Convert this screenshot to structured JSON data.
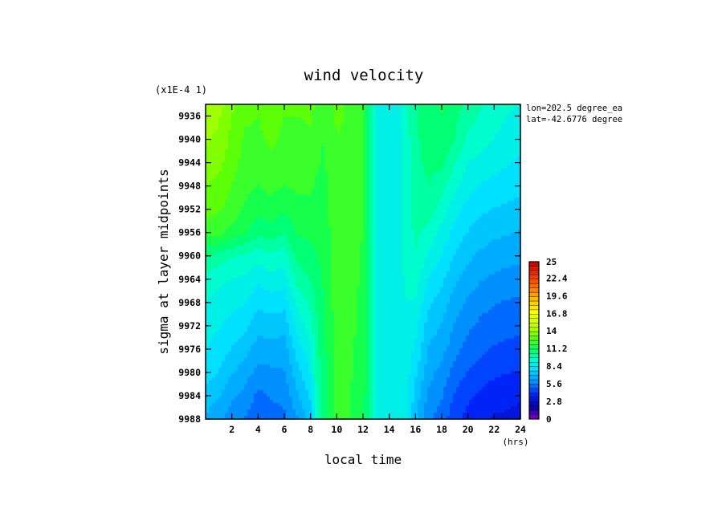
{
  "chart_data": {
    "type": "heatmap",
    "title": "wind velocity",
    "xlabel": "local time",
    "xunit": "(hrs)",
    "ylabel": "sigma at layer midpoints",
    "yscale_label": "(x1E-4 1)",
    "info_lines": [
      "lon=202.5 degree_ea",
      "lat=-42.6776 degree"
    ],
    "xlim": [
      0,
      24
    ],
    "ylim": [
      9988,
      9934
    ],
    "x_ticks": [
      2,
      4,
      6,
      8,
      10,
      12,
      14,
      16,
      18,
      20,
      22,
      24
    ],
    "y_ticks": [
      9936,
      9940,
      9944,
      9948,
      9952,
      9956,
      9960,
      9964,
      9968,
      9972,
      9976,
      9980,
      9984,
      9988
    ],
    "colorbar_ticks": [
      "25",
      "22.4",
      "19.6",
      "16.8",
      "14",
      "11.2",
      "8.4",
      "5.6",
      "2.8",
      "0"
    ],
    "colorbar_range": [
      0,
      25
    ],
    "colorbar_levels": 36,
    "grid": false,
    "x": [
      0,
      1,
      2,
      3,
      4,
      5,
      6,
      7,
      8,
      8.5,
      9,
      10,
      11,
      12,
      13,
      14,
      15,
      16,
      17,
      18,
      19,
      20,
      21,
      22,
      23,
      24
    ],
    "y": [
      9934,
      9936,
      9940,
      9944,
      9948,
      9952,
      9956,
      9960,
      9964,
      9968,
      9972,
      9976,
      9980,
      9984,
      9988
    ],
    "values": [
      [
        14.6,
        14.2,
        13.4,
        12.6,
        12.6,
        12.8,
        12.6,
        12.6,
        12.8,
        12.4,
        12.0,
        12.6,
        12.4,
        12.0,
        9.0,
        8.4,
        9.0,
        10.4,
        10.8,
        11.2,
        10.8,
        10.2,
        9.8,
        9.5,
        9.2,
        9.0
      ],
      [
        14.4,
        14.0,
        13.2,
        12.6,
        12.5,
        12.7,
        12.5,
        12.5,
        12.6,
        12.2,
        11.9,
        12.6,
        12.4,
        12.0,
        9.0,
        8.4,
        9.0,
        10.4,
        10.8,
        11.1,
        10.6,
        10.0,
        9.6,
        9.3,
        9.0,
        8.8
      ],
      [
        14.0,
        13.7,
        13.0,
        12.4,
        12.4,
        12.6,
        12.4,
        12.3,
        12.4,
        12.1,
        11.8,
        12.5,
        12.4,
        12.0,
        9.0,
        8.4,
        9.0,
        10.3,
        10.7,
        11.0,
        10.4,
        9.6,
        9.3,
        9.0,
        8.8,
        8.6
      ],
      [
        13.6,
        13.4,
        12.8,
        12.2,
        12.2,
        12.4,
        12.2,
        12.1,
        12.2,
        11.9,
        11.7,
        12.5,
        12.3,
        11.9,
        9.0,
        8.4,
        9.0,
        10.2,
        10.6,
        10.6,
        9.8,
        9.0,
        8.8,
        8.6,
        8.4,
        8.2
      ],
      [
        13.2,
        13.0,
        12.5,
        12.0,
        11.8,
        12.0,
        11.8,
        11.9,
        11.9,
        11.7,
        11.6,
        12.4,
        12.3,
        11.9,
        9.0,
        8.4,
        9.0,
        10.1,
        10.4,
        10.0,
        9.2,
        8.6,
        8.3,
        8.1,
        8.0,
        7.8
      ],
      [
        12.8,
        12.6,
        12.2,
        11.7,
        11.3,
        11.5,
        11.2,
        11.6,
        11.6,
        11.5,
        11.5,
        12.4,
        12.2,
        11.8,
        9.0,
        8.4,
        9.0,
        10.0,
        10.1,
        9.4,
        8.6,
        8.1,
        7.8,
        7.6,
        7.5,
        7.4
      ],
      [
        12.2,
        12.0,
        11.6,
        11.2,
        10.6,
        10.8,
        10.5,
        11.2,
        11.3,
        11.3,
        11.4,
        12.3,
        12.2,
        11.8,
        9.0,
        8.4,
        9.0,
        9.9,
        9.5,
        8.8,
        8.1,
        7.6,
        7.3,
        7.1,
        7.0,
        6.9
      ],
      [
        10.4,
        10.2,
        9.8,
        9.6,
        9.3,
        9.6,
        9.4,
        10.6,
        10.9,
        11.1,
        11.3,
        12.3,
        12.1,
        11.7,
        9.0,
        8.4,
        9.0,
        9.7,
        8.9,
        8.3,
        7.6,
        7.1,
        6.8,
        6.6,
        6.5,
        6.4
      ],
      [
        9.4,
        9.2,
        9.0,
        8.9,
        8.5,
        8.8,
        8.6,
        10.0,
        10.5,
        10.9,
        11.2,
        12.2,
        12.1,
        11.7,
        9.0,
        8.4,
        9.0,
        9.4,
        8.3,
        7.8,
        7.1,
        6.6,
        6.3,
        6.1,
        6.0,
        5.9
      ],
      [
        9.0,
        8.8,
        8.5,
        8.4,
        7.8,
        8.0,
        7.9,
        9.2,
        9.9,
        10.6,
        11.1,
        12.2,
        12.0,
        11.6,
        9.0,
        8.4,
        9.0,
        9.0,
        7.8,
        7.3,
        6.6,
        6.1,
        5.8,
        5.6,
        5.5,
        5.4
      ],
      [
        8.6,
        8.4,
        8.1,
        7.9,
        7.2,
        7.3,
        7.2,
        8.6,
        9.4,
        10.4,
        11.0,
        12.1,
        12.0,
        11.6,
        9.0,
        8.4,
        9.0,
        8.6,
        7.3,
        6.9,
        6.2,
        5.7,
        5.4,
        5.2,
        5.1,
        5.0
      ],
      [
        8.4,
        8.0,
        7.6,
        7.2,
        6.6,
        6.7,
        6.6,
        8.0,
        8.9,
        10.2,
        10.9,
        12.1,
        11.9,
        11.5,
        9.0,
        8.4,
        9.0,
        8.2,
        6.9,
        6.5,
        5.8,
        5.3,
        5.0,
        4.8,
        4.7,
        4.6
      ],
      [
        8.0,
        7.6,
        7.0,
        6.6,
        6.0,
        6.1,
        6.2,
        7.4,
        8.4,
        10.0,
        10.8,
        12.0,
        11.9,
        11.5,
        9.0,
        8.4,
        9.0,
        7.8,
        6.5,
        6.0,
        5.3,
        4.8,
        4.5,
        4.3,
        4.2,
        4.1
      ],
      [
        7.4,
        7.0,
        6.4,
        6.0,
        5.4,
        5.6,
        5.8,
        6.8,
        7.8,
        9.8,
        10.7,
        12.0,
        11.8,
        11.4,
        9.0,
        8.4,
        9.0,
        7.4,
        6.1,
        5.6,
        4.8,
        4.3,
        4.0,
        3.8,
        3.7,
        3.6
      ],
      [
        6.8,
        6.4,
        5.9,
        5.5,
        5.0,
        5.2,
        5.4,
        6.2,
        7.2,
        9.6,
        10.6,
        11.9,
        11.8,
        11.4,
        9.0,
        8.4,
        9.0,
        7.0,
        5.7,
        5.2,
        4.4,
        3.9,
        3.6,
        3.4,
        3.3,
        3.2
      ]
    ]
  }
}
